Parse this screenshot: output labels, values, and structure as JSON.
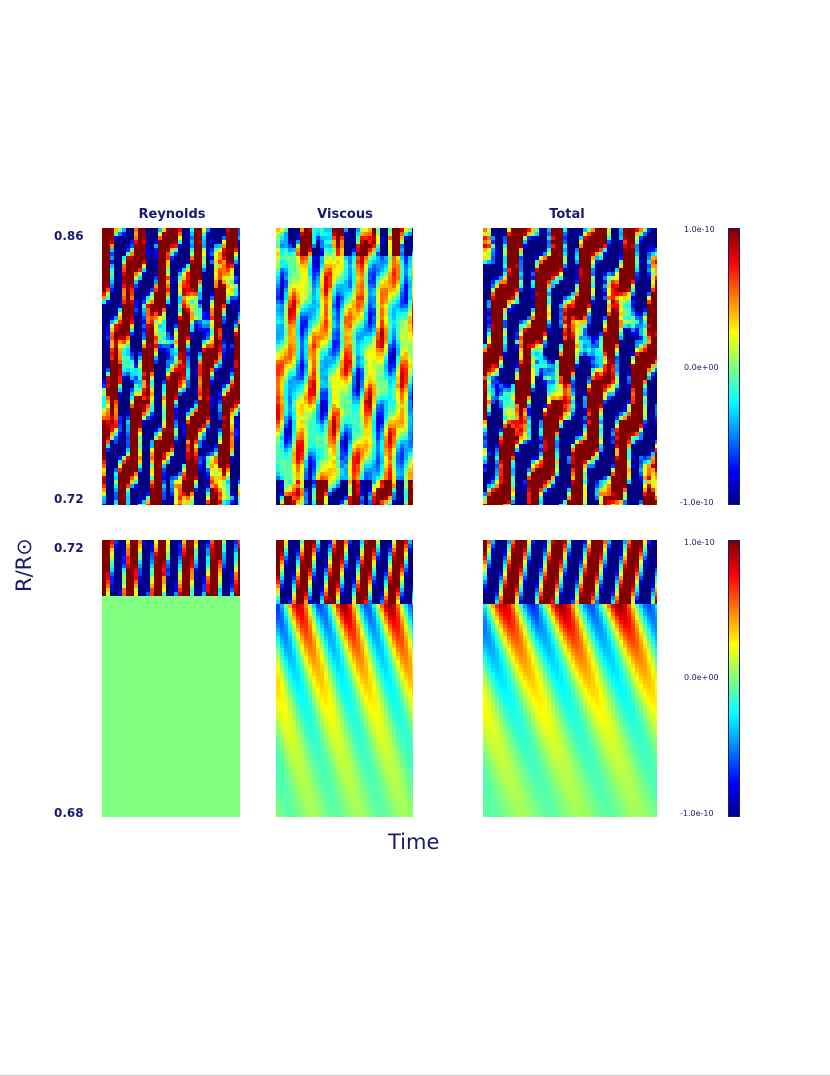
{
  "chart_data": {
    "type": "heatmap",
    "xlabel": "Time",
    "ylabel": "R/R⊙",
    "columns": [
      "Reynolds",
      "Viscous",
      "Total"
    ],
    "rows": [
      {
        "name": "upper",
        "ylim": [
          0.72,
          0.86
        ],
        "ytick_top": "0.86",
        "ytick_bottom": "0.72"
      },
      {
        "name": "lower",
        "ylim": [
          0.68,
          0.72
        ],
        "ytick_top": "0.72",
        "ytick_bottom": "0.68"
      }
    ],
    "colorbar": {
      "colormap": "jet",
      "range": [
        -1e-10,
        1e-10
      ],
      "ticks": [
        "1.0e-10",
        "0.0e+00",
        "-1.0e-10"
      ]
    },
    "colors": {
      "text": "#1a1a6e",
      "background": "#ffffff",
      "zero_level": "#80ff80"
    }
  },
  "titles": {
    "reynolds": "Reynolds",
    "viscous": "Viscous",
    "total": "Total"
  },
  "ticks": {
    "upper_top": "0.86",
    "upper_bottom": "0.72",
    "lower_top": "0.72",
    "lower_bottom": "0.68"
  },
  "colorbar_labels": {
    "upper_max": "1.0e-10",
    "upper_mid": "0.0e+00",
    "upper_min": "-1.0e-10",
    "lower_max": "1.0e-10",
    "lower_mid": "0.0e+00",
    "lower_min": "-1.0e-10"
  },
  "axes": {
    "xlabel": "Time",
    "ylabel": "R/R⊙"
  }
}
